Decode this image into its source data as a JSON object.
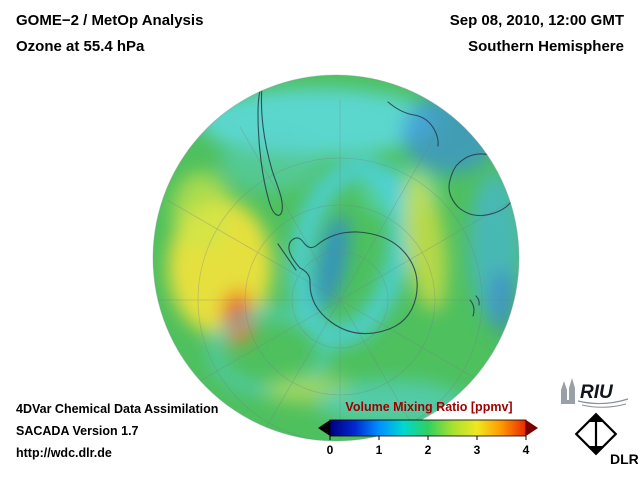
{
  "header": {
    "title_line1": "GOME−2 / MetOp Analysis",
    "title_line2": "Ozone at 55.4 hPa",
    "datetime": "Sep 08, 2010, 12:00 GMT",
    "region": "Southern Hemisphere"
  },
  "footer": {
    "line1": "4DVar Chemical Data Assimilation",
    "line2": "SACADA Version 1.7",
    "line3": "http://wdc.dlr.de"
  },
  "colorbar": {
    "title": "Volume Mixing Ratio [ppmv]",
    "title_color": "#a00000",
    "ticks": [
      "0",
      "1",
      "2",
      "3",
      "4"
    ],
    "range": [
      0,
      4
    ],
    "gradient": [
      "#000080",
      "#0028d0",
      "#0090ff",
      "#00d8d0",
      "#30d060",
      "#a8e030",
      "#f0e820",
      "#ff9800",
      "#e82800"
    ],
    "left_arrow_color": "#000000",
    "right_arrow_color": "#7a0000"
  },
  "logos": {
    "riu_text": "RIU",
    "dlr_text": "DLR"
  }
}
